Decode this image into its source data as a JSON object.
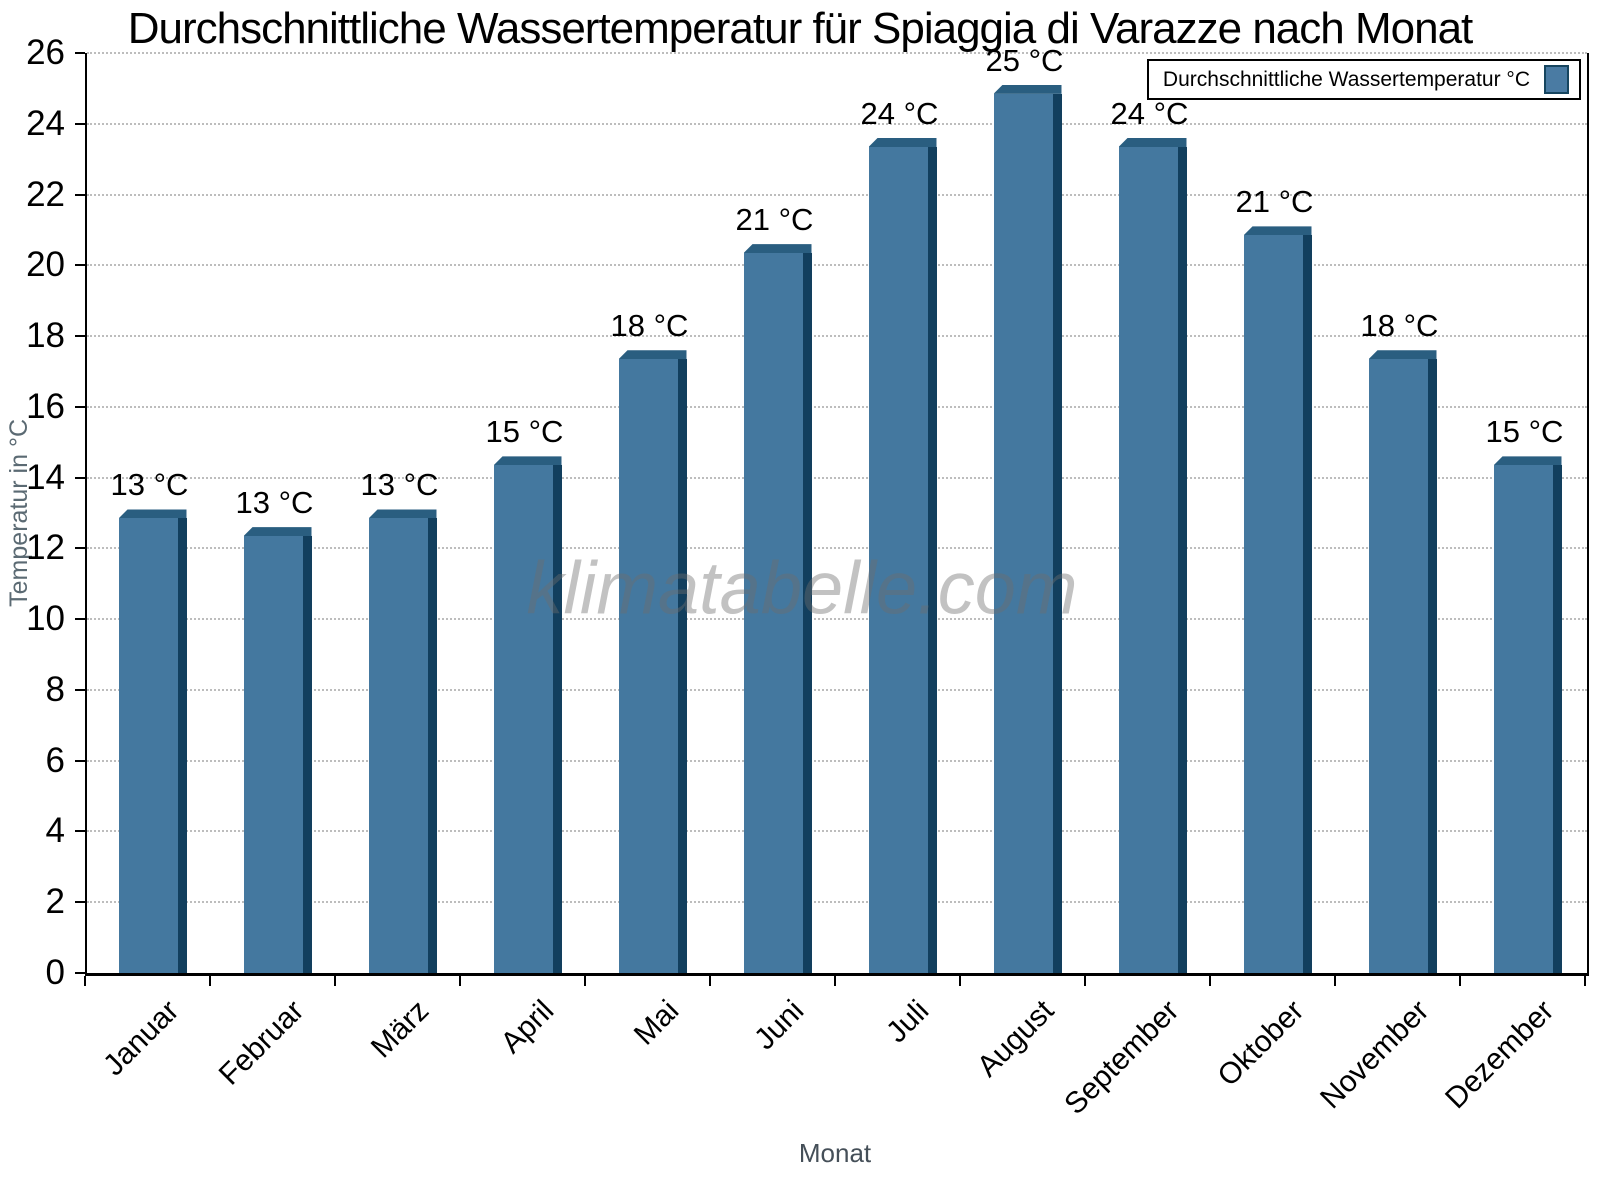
{
  "watermark": "klimatabelle.com",
  "chart_data": {
    "type": "bar",
    "title": "Durchschnittliche Wassertemperatur für Spiaggia di Varazze nach Monat",
    "xlabel": "Monat",
    "ylabel": "Temperatur in °C",
    "categories": [
      "Januar",
      "Februar",
      "März",
      "April",
      "Mai",
      "Juni",
      "Juli",
      "August",
      "September",
      "Oktober",
      "November",
      "Dezember"
    ],
    "values": [
      13.1,
      12.6,
      13.1,
      14.6,
      17.6,
      20.6,
      23.6,
      25.1,
      23.6,
      21.1,
      17.6,
      14.6
    ],
    "bar_labels": [
      "13 °C",
      "13 °C",
      "13 °C",
      "15 °C",
      "18 °C",
      "21 °C",
      "24 °C",
      "25 °C",
      "24 °C",
      "21 °C",
      "18 °C",
      "15 °C"
    ],
    "ylim": [
      0,
      26
    ],
    "ytick_step": 2,
    "grid": "horizontal-dotted",
    "legend": [
      "Durchschnittliche Wassertemperatur °C"
    ],
    "legend_position": "top-right",
    "colors": {
      "bar_front": "#44789F",
      "bar_side": "#123F5E",
      "bar_top": "#2A5E80",
      "legend_swatch": "#4A7BA3",
      "legend_swatch_border": "#16455F",
      "grid": "#BDBDBD",
      "axis": "#000000",
      "y_axis_title": "#5B6A73",
      "x_axis_title": "#454F58",
      "watermark": "#C3C3C3"
    }
  }
}
